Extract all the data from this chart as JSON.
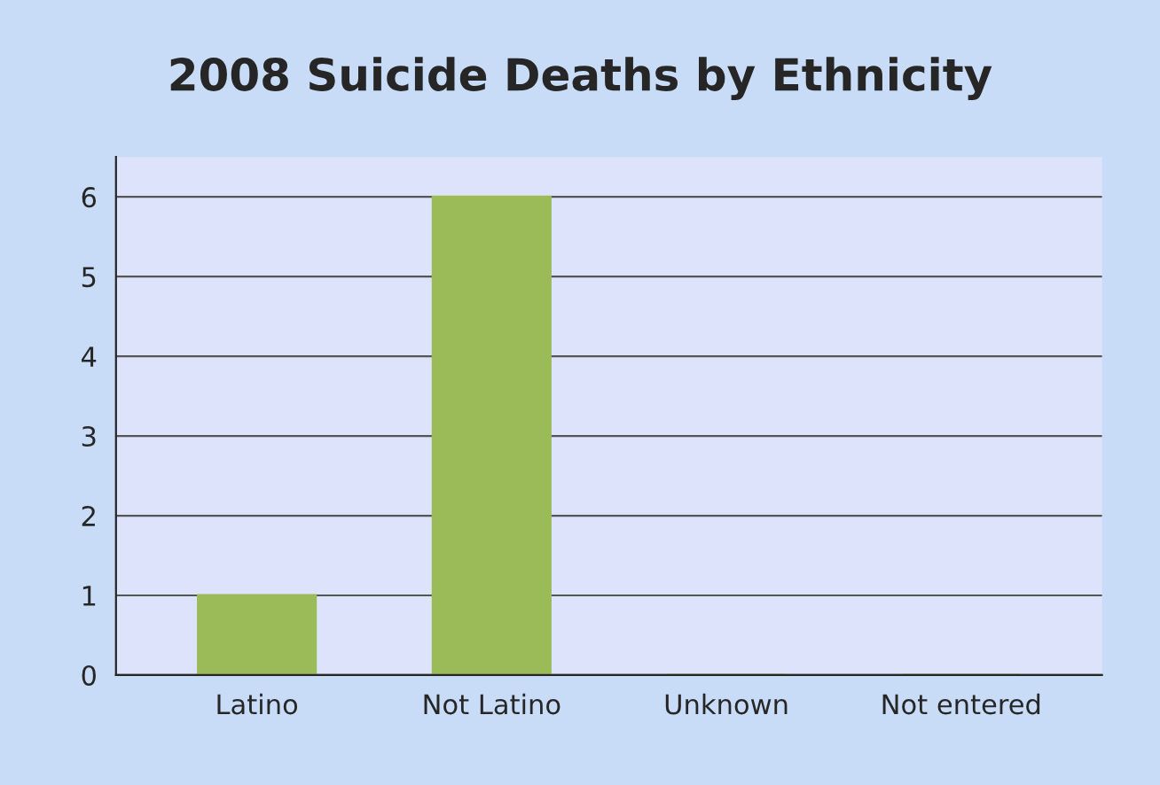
{
  "chart_data": {
    "type": "bar",
    "title": "2008 Suicide Deaths by Ethnicity",
    "categories": [
      "Latino",
      "Not Latino",
      "Unknown",
      "Not entered"
    ],
    "values": [
      1,
      6,
      0,
      0
    ],
    "color": "#9bbb59",
    "ylim": [
      0,
      6.5
    ],
    "yticks": [
      0,
      1,
      2,
      3,
      4,
      5,
      6
    ],
    "grid": "y",
    "legend": false
  }
}
